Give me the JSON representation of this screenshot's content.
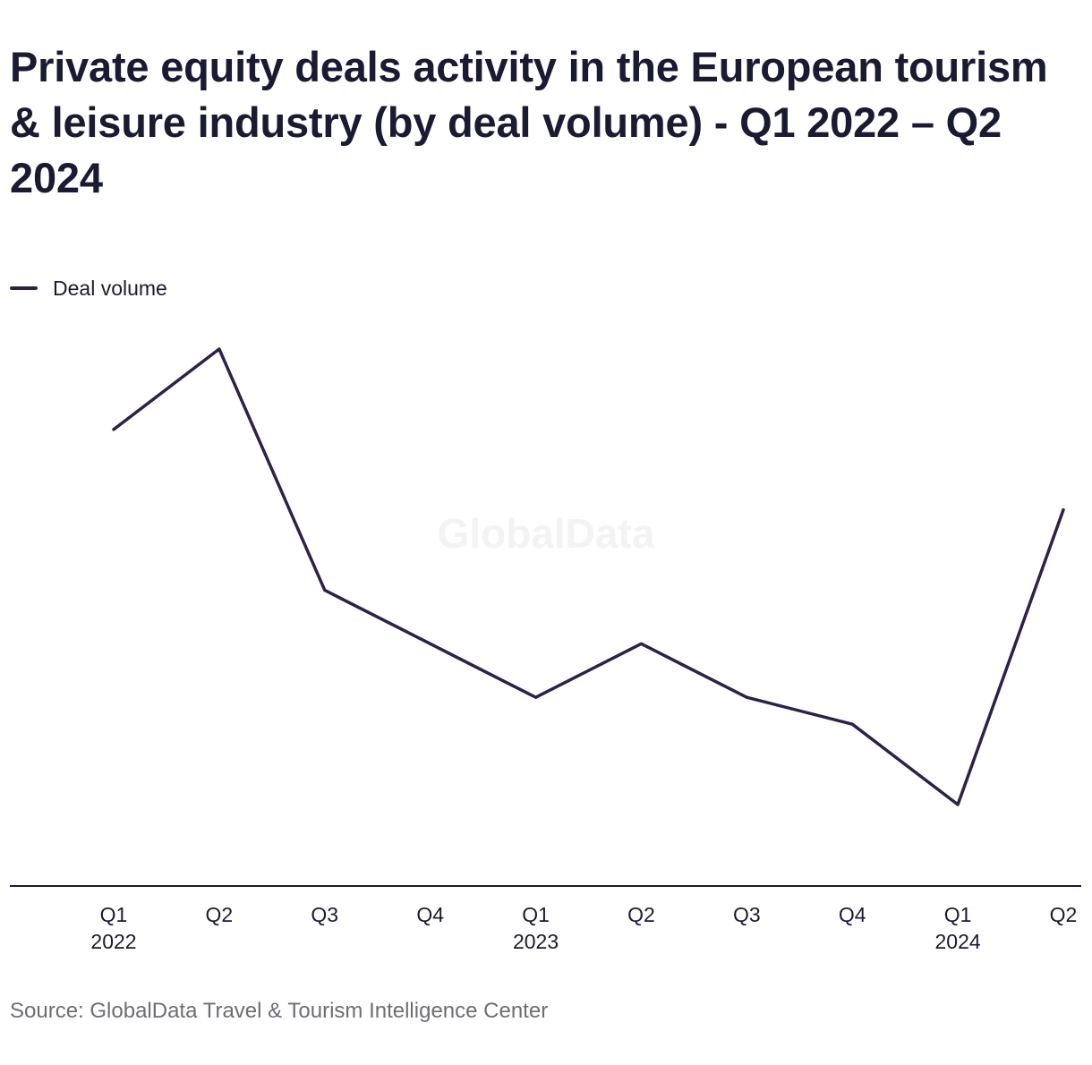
{
  "title": "Private equity deals activity in the European tourism & leisure industry (by deal volume) - Q1 2022 – Q2 2024",
  "source": "Source: GlobalData Travel & Tourism Intelligence Center",
  "watermark": "GlobalData",
  "colors": {
    "line": "#2e2148",
    "axis": "#1b1a33",
    "text": "#1b1a33",
    "muted": "#6d6d76"
  },
  "chart_data": {
    "type": "line",
    "categories": [
      "Q1 2022",
      "Q2 2022",
      "Q3 2022",
      "Q4 2022",
      "Q1 2023",
      "Q2 2023",
      "Q3 2023",
      "Q4 2023",
      "Q1 2024",
      "Q2 2024"
    ],
    "x_tick_labels": [
      {
        "quarter": "Q1",
        "year": "2022"
      },
      {
        "quarter": "Q2",
        "year": ""
      },
      {
        "quarter": "Q3",
        "year": ""
      },
      {
        "quarter": "Q4",
        "year": ""
      },
      {
        "quarter": "Q1",
        "year": "2023"
      },
      {
        "quarter": "Q2",
        "year": ""
      },
      {
        "quarter": "Q3",
        "year": ""
      },
      {
        "quarter": "Q4",
        "year": ""
      },
      {
        "quarter": "Q1",
        "year": "2024"
      },
      {
        "quarter": "Q2",
        "year": ""
      }
    ],
    "series": [
      {
        "name": "Deal volume",
        "values": [
          51,
          54,
          45,
          43,
          41,
          43,
          41,
          40,
          37,
          48
        ]
      }
    ],
    "ylim": [
      34,
      55
    ],
    "xlabel": "",
    "ylabel": "",
    "grid": false,
    "y_axis_labels_shown": false,
    "legend_position": "top-left"
  }
}
